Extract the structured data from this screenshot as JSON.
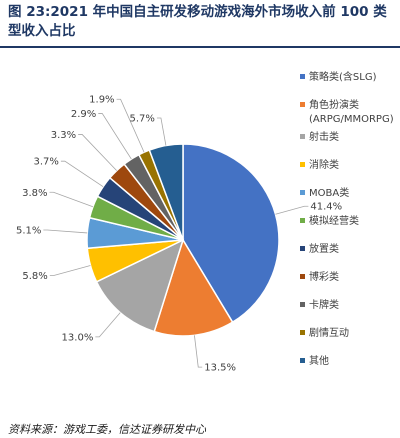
{
  "figure": {
    "title": "图 23:2021 年中国自主研发移动游戏海外市场收入前 100 类型收入占比",
    "source": "资料来源：游戏工委，信达证券研发中心"
  },
  "chart_data": {
    "type": "pie",
    "unit": "%",
    "legend_position": "right",
    "categories": [
      "策略类(含SLG)",
      "角色扮演类(ARPG/MMORPG)",
      "射击类",
      "消除类",
      "MOBA类",
      "模拟经营类",
      "放置类",
      "博彩类",
      "卡牌类",
      "剧情互动",
      "其他"
    ],
    "values": [
      41.4,
      13.5,
      13.0,
      5.8,
      5.1,
      3.8,
      3.7,
      3.3,
      2.9,
      1.9,
      5.7
    ],
    "labels": [
      "41.4%",
      "13.5%",
      "13.0%",
      "5.8%",
      "5.1%",
      "3.8%",
      "3.7%",
      "3.3%",
      "2.9%",
      "1.9%",
      "5.7%"
    ],
    "colors": [
      "#4472C4",
      "#ED7D31",
      "#A5A5A5",
      "#FFC000",
      "#5B9BD5",
      "#70AD47",
      "#264478",
      "#9E480E",
      "#636363",
      "#997300",
      "#255E91"
    ],
    "legend": [
      {
        "label": "策略类(含SLG)",
        "sub": ""
      },
      {
        "label": "角色扮演类",
        "sub": "(ARPG/MMORPG)"
      },
      {
        "label": "射击类",
        "sub": ""
      },
      {
        "label": "消除类",
        "sub": ""
      },
      {
        "label": "MOBA类",
        "sub": ""
      },
      {
        "label": "模拟经营类",
        "sub": ""
      },
      {
        "label": "放置类",
        "sub": ""
      },
      {
        "label": "博彩类",
        "sub": ""
      },
      {
        "label": "卡牌类",
        "sub": ""
      },
      {
        "label": "剧情互动",
        "sub": ""
      },
      {
        "label": "其他",
        "sub": ""
      }
    ]
  }
}
